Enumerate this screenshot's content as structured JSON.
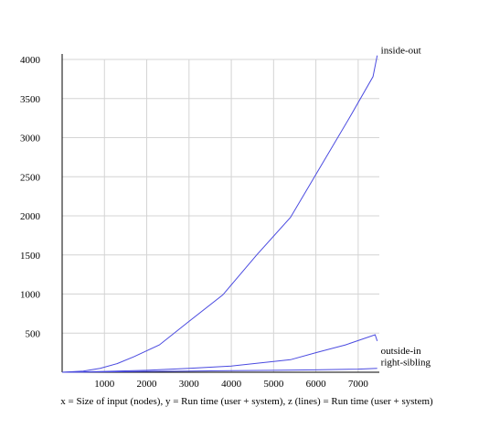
{
  "chart_data": {
    "type": "line",
    "title": "",
    "xlabel": "x = Size of input (nodes), y = Run time (user + system), z (lines) = Run time (user + system)",
    "ylabel": "",
    "xlim": [
      0,
      7500
    ],
    "ylim": [
      0,
      4000
    ],
    "xticks": [
      1000,
      2000,
      3000,
      4000,
      5000,
      6000,
      7000
    ],
    "yticks": [
      500,
      1000,
      1500,
      2000,
      2500,
      3000,
      3500,
      4000
    ],
    "grid": true,
    "line_color": "#4a4ae0",
    "series": [
      {
        "name": "inside-out",
        "x": [
          0,
          500,
          900,
          1300,
          1700,
          2300,
          3000,
          3800,
          4600,
          5400,
          6100,
          6800,
          7350,
          7450
        ],
        "y": [
          0,
          15,
          50,
          110,
          200,
          350,
          650,
          990,
          1500,
          1980,
          2620,
          3260,
          3780,
          4050
        ]
      },
      {
        "name": "outside-in",
        "x": [
          0,
          1000,
          2000,
          3000,
          4000,
          5400,
          6000,
          6700,
          7400,
          7450
        ],
        "y": [
          0,
          10,
          25,
          50,
          80,
          160,
          250,
          350,
          480,
          400
        ]
      },
      {
        "name": "right-sibling",
        "x": [
          0,
          1000,
          2000,
          3000,
          4000,
          5000,
          6000,
          7000,
          7450
        ],
        "y": [
          0,
          5,
          10,
          15,
          20,
          25,
          30,
          40,
          50
        ]
      }
    ]
  }
}
